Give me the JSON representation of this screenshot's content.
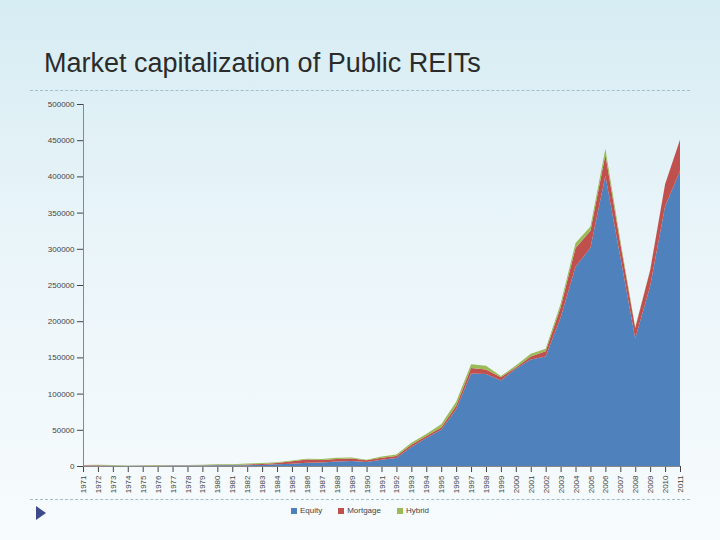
{
  "chart_data": {
    "type": "area",
    "title": "Market capitalization of Public REITs",
    "stacked": true,
    "grid": false,
    "legend": "bottom",
    "x": [
      1971,
      1972,
      1973,
      1974,
      1975,
      1976,
      1977,
      1978,
      1979,
      1980,
      1981,
      1982,
      1983,
      1984,
      1985,
      1986,
      1987,
      1988,
      1989,
      1990,
      1991,
      1992,
      1993,
      1994,
      1995,
      1996,
      1997,
      1998,
      1999,
      2000,
      2001,
      2002,
      2003,
      2004,
      2005,
      2006,
      2007,
      2008,
      2009,
      2010,
      2011
    ],
    "xlim": [
      1971,
      2011
    ],
    "xticks": [
      1971,
      1972,
      1973,
      1974,
      1975,
      1976,
      1977,
      1978,
      1979,
      1980,
      1981,
      1982,
      1983,
      1984,
      1985,
      1986,
      1987,
      1988,
      1989,
      1990,
      1991,
      1992,
      1993,
      1994,
      1995,
      1996,
      1997,
      1998,
      1999,
      2000,
      2001,
      2002,
      2003,
      2004,
      2005,
      2006,
      2007,
      2008,
      2009,
      2010,
      2011
    ],
    "ylim": [
      0,
      500000
    ],
    "yticks": [
      0,
      50000,
      100000,
      150000,
      200000,
      250000,
      300000,
      350000,
      400000,
      450000,
      500000
    ],
    "series": [
      {
        "name": "Equity",
        "color": "#4f81bd",
        "values": [
          332,
          377,
          336,
          242,
          276,
          410,
          538,
          576,
          744,
          942,
          978,
          1071,
          1469,
          2323,
          3270,
          4336,
          5004,
          6142,
          6770,
          5552,
          8786,
          11171,
          26082,
          38812,
          49913,
          78302,
          127825,
          126905,
          118233,
          134431,
          147092,
          151272,
          204800,
          275291,
          301491,
          400741,
          288695,
          176238,
          248355,
          358908,
          407529
        ]
      },
      {
        "name": "Mortgage",
        "color": "#c0504d",
        "values": [
          570,
          774,
          517,
          162,
          312,
          416,
          398,
          340,
          377,
          510,
          541,
          1133,
          1460,
          1801,
          3162,
          4782,
          3162,
          3621,
          3536,
          2549,
          2586,
          2774,
          3399,
          2503,
          3395,
          4779,
          7372,
          6481,
          4442,
          1632,
          3991,
          7146,
          14187,
          25964,
          23394,
          29195,
          19054,
          14281,
          22103,
          30387,
          42972
        ]
      },
      {
        "name": "Hybrid",
        "color": "#9bbb59",
        "values": [
          592,
          730,
          541,
          308,
          312,
          482,
          592,
          496,
          633,
          847,
          920,
          1095,
          1328,
          961,
          1242,
          806,
          1536,
          1672,
          1356,
          636,
          1596,
          1967,
          2678,
          2991,
          4233,
          5695,
          5337,
          4916,
          1587,
          2652,
          3816,
          3519,
          5225,
          6640,
          5806,
          8135,
          4260,
          1133,
          741,
          0,
          0
        ]
      }
    ]
  }
}
